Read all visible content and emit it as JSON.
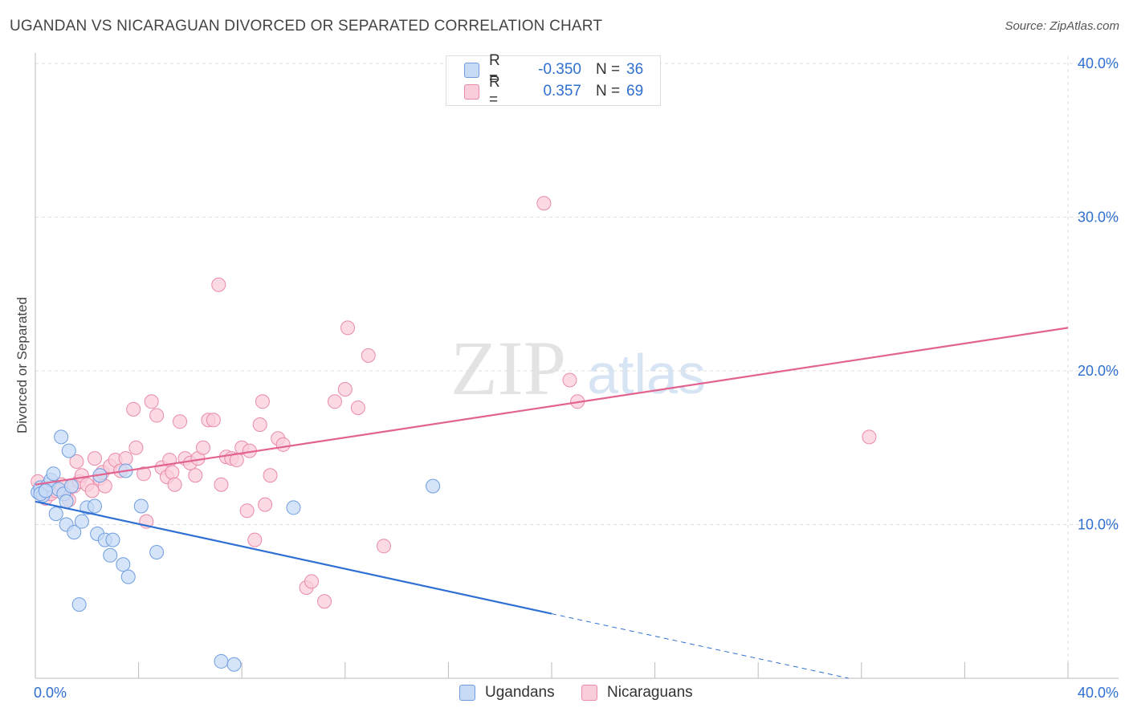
{
  "title": "UGANDAN VS NICARAGUAN DIVORCED OR SEPARATED CORRELATION CHART",
  "source": "Source: ZipAtlas.com",
  "watermark": {
    "zip": "ZIP",
    "atlas": "atlas"
  },
  "stats": [
    {
      "r_label": "R =",
      "r_value": "-0.350",
      "n_label": "N =",
      "n_value": "36"
    },
    {
      "r_label": "R =",
      "r_value": "0.357",
      "n_label": "N =",
      "n_value": "69"
    }
  ],
  "legend": {
    "ugandans": "Ugandans",
    "nicaraguans": "Nicaraguans"
  },
  "colors": {
    "ugandans_fill": "#c7dbf6",
    "ugandans_stroke": "#6e9de0",
    "ugandans_line": "#2f70d4",
    "nicaraguans_fill": "#f9cdda",
    "nicaraguans_stroke": "#ea8aa9",
    "nicaraguans_line": "#e26390",
    "tick_label": "#2f6fcf",
    "grid": "#dddddd"
  },
  "chart_data": {
    "type": "scatter",
    "ylabel": "Divorced or Separated",
    "xlim": [
      0,
      40
    ],
    "ylim": [
      0,
      40
    ],
    "y_ticks": [
      {
        "value": 10,
        "label": "10.0%"
      },
      {
        "value": 20,
        "label": "20.0%"
      },
      {
        "value": 30,
        "label": "30.0%"
      },
      {
        "value": 40,
        "label": "40.0%"
      }
    ],
    "x_tick_labels": [
      {
        "value": 0,
        "label": "0.0%"
      },
      {
        "value": 40,
        "label": "40.0%"
      }
    ],
    "x_minor_ticks": [
      0,
      4,
      8,
      12,
      16,
      20,
      24,
      28,
      32,
      36,
      40
    ],
    "grid": true,
    "series": [
      {
        "name": "Ugandans",
        "points": [
          [
            0.1,
            12.1
          ],
          [
            0.2,
            12.4
          ],
          [
            0.3,
            11.9
          ],
          [
            0.4,
            12.2
          ],
          [
            0.5,
            12.6
          ],
          [
            0.6,
            12.9
          ],
          [
            0.7,
            13.3
          ],
          [
            0.8,
            10.7
          ],
          [
            0.9,
            12.3
          ],
          [
            1.0,
            15.7
          ],
          [
            1.1,
            12.0
          ],
          [
            1.2,
            11.5
          ],
          [
            1.2,
            10.0
          ],
          [
            1.3,
            14.8
          ],
          [
            1.4,
            12.5
          ],
          [
            1.5,
            9.5
          ],
          [
            1.7,
            4.8
          ],
          [
            1.8,
            10.2
          ],
          [
            2.0,
            11.1
          ],
          [
            2.3,
            11.2
          ],
          [
            2.4,
            9.4
          ],
          [
            2.5,
            13.2
          ],
          [
            2.7,
            9.0
          ],
          [
            2.9,
            8.0
          ],
          [
            3.0,
            9.0
          ],
          [
            3.4,
            7.4
          ],
          [
            3.5,
            13.5
          ],
          [
            3.6,
            6.6
          ],
          [
            4.1,
            11.2
          ],
          [
            4.7,
            8.2
          ],
          [
            7.2,
            1.1
          ],
          [
            7.7,
            0.9
          ],
          [
            10.0,
            11.1
          ],
          [
            15.4,
            12.5
          ],
          [
            0.2,
            12.0
          ],
          [
            0.4,
            12.2
          ]
        ],
        "trend": {
          "x0": 0,
          "y0": 11.5,
          "x1": 20,
          "y1": 4.2,
          "dash_to_x": 31.5
        }
      },
      {
        "name": "Nicaraguans",
        "points": [
          [
            0.1,
            12.8
          ],
          [
            0.3,
            12.3
          ],
          [
            0.4,
            11.7
          ],
          [
            0.6,
            12.0
          ],
          [
            0.8,
            12.2
          ],
          [
            1.0,
            12.6
          ],
          [
            1.2,
            12.0
          ],
          [
            1.3,
            11.6
          ],
          [
            1.5,
            12.5
          ],
          [
            1.7,
            12.8
          ],
          [
            1.8,
            13.2
          ],
          [
            2.0,
            12.6
          ],
          [
            2.2,
            12.2
          ],
          [
            2.3,
            14.3
          ],
          [
            2.5,
            13.0
          ],
          [
            2.6,
            13.4
          ],
          [
            2.7,
            12.5
          ],
          [
            2.9,
            13.8
          ],
          [
            3.1,
            14.2
          ],
          [
            3.3,
            13.5
          ],
          [
            3.5,
            14.3
          ],
          [
            3.8,
            17.5
          ],
          [
            3.9,
            15.0
          ],
          [
            4.2,
            13.3
          ],
          [
            4.3,
            10.2
          ],
          [
            4.5,
            18.0
          ],
          [
            4.7,
            17.1
          ],
          [
            4.9,
            13.7
          ],
          [
            5.1,
            13.1
          ],
          [
            5.2,
            14.2
          ],
          [
            5.3,
            13.4
          ],
          [
            5.4,
            12.6
          ],
          [
            5.6,
            16.7
          ],
          [
            5.8,
            14.3
          ],
          [
            6.0,
            14.0
          ],
          [
            6.2,
            13.2
          ],
          [
            6.3,
            14.3
          ],
          [
            6.5,
            15.0
          ],
          [
            6.7,
            16.8
          ],
          [
            6.9,
            16.8
          ],
          [
            7.1,
            25.6
          ],
          [
            7.2,
            12.6
          ],
          [
            7.4,
            14.4
          ],
          [
            7.6,
            14.3
          ],
          [
            7.8,
            14.2
          ],
          [
            8.0,
            15.0
          ],
          [
            8.2,
            10.9
          ],
          [
            8.3,
            14.8
          ],
          [
            8.5,
            9.0
          ],
          [
            8.7,
            16.5
          ],
          [
            8.8,
            18.0
          ],
          [
            8.9,
            11.3
          ],
          [
            9.1,
            13.2
          ],
          [
            9.4,
            15.6
          ],
          [
            9.6,
            15.2
          ],
          [
            10.5,
            5.9
          ],
          [
            10.7,
            6.3
          ],
          [
            11.2,
            5.0
          ],
          [
            11.6,
            18.0
          ],
          [
            12.0,
            18.8
          ],
          [
            12.1,
            22.8
          ],
          [
            12.5,
            17.6
          ],
          [
            12.9,
            21.0
          ],
          [
            13.5,
            8.6
          ],
          [
            19.7,
            30.9
          ],
          [
            20.7,
            19.4
          ],
          [
            21.0,
            18.0
          ],
          [
            32.3,
            15.7
          ],
          [
            1.6,
            14.1
          ]
        ],
        "trend": {
          "x0": 0,
          "y0": 12.6,
          "x1": 40,
          "y1": 22.8
        }
      }
    ]
  }
}
